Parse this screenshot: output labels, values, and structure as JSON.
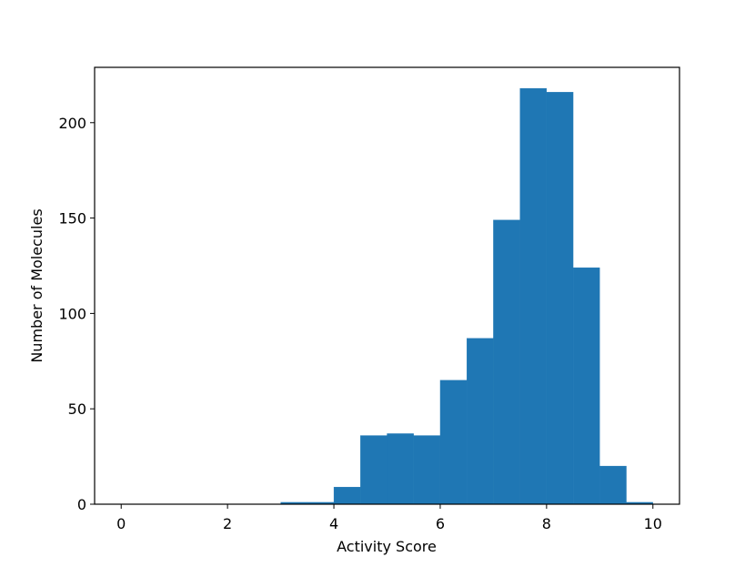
{
  "chart_data": {
    "type": "bar",
    "title": "",
    "xlabel": "Activity Score",
    "ylabel": "Number of Molecules",
    "bar_color": "#1f77b4",
    "xlim": [
      -0.5,
      10.5
    ],
    "ylim": [
      0,
      229
    ],
    "xticks": [
      0,
      2,
      4,
      6,
      8,
      10
    ],
    "yticks": [
      0,
      50,
      100,
      150,
      200
    ],
    "bins": [
      {
        "x0": 0.0,
        "x1": 0.5,
        "count": 0
      },
      {
        "x0": 0.5,
        "x1": 1.0,
        "count": 0
      },
      {
        "x0": 1.0,
        "x1": 1.5,
        "count": 0
      },
      {
        "x0": 1.5,
        "x1": 2.0,
        "count": 0
      },
      {
        "x0": 2.0,
        "x1": 2.5,
        "count": 0
      },
      {
        "x0": 2.5,
        "x1": 3.0,
        "count": 0
      },
      {
        "x0": 3.0,
        "x1": 3.5,
        "count": 1
      },
      {
        "x0": 3.5,
        "x1": 4.0,
        "count": 1
      },
      {
        "x0": 4.0,
        "x1": 4.5,
        "count": 9
      },
      {
        "x0": 4.5,
        "x1": 5.0,
        "count": 36
      },
      {
        "x0": 5.0,
        "x1": 5.5,
        "count": 37
      },
      {
        "x0": 5.5,
        "x1": 6.0,
        "count": 36
      },
      {
        "x0": 6.0,
        "x1": 6.5,
        "count": 65
      },
      {
        "x0": 6.5,
        "x1": 7.0,
        "count": 87
      },
      {
        "x0": 7.0,
        "x1": 7.5,
        "count": 149
      },
      {
        "x0": 7.5,
        "x1": 8.0,
        "count": 218
      },
      {
        "x0": 8.0,
        "x1": 8.5,
        "count": 216
      },
      {
        "x0": 8.5,
        "x1": 9.0,
        "count": 124
      },
      {
        "x0": 9.0,
        "x1": 9.5,
        "count": 20
      },
      {
        "x0": 9.5,
        "x1": 10.0,
        "count": 1
      }
    ],
    "grid": false,
    "legend": "none"
  }
}
